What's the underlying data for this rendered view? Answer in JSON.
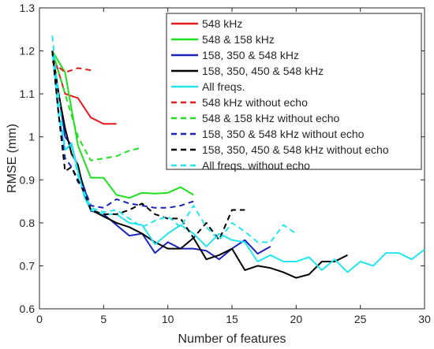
{
  "chart_data": {
    "type": "line",
    "title": "",
    "xlabel": "Number of features",
    "ylabel": "RMSE (mm)",
    "xlim": [
      0,
      30
    ],
    "ylim": [
      0.6,
      1.3
    ],
    "xticks": [
      0,
      5,
      10,
      15,
      20,
      25,
      30
    ],
    "yticks": [
      0.6,
      0.7,
      0.8,
      0.9,
      1.0,
      1.1,
      1.2,
      1.3
    ],
    "xtick_labels": [
      "0",
      "5",
      "10",
      "15",
      "20",
      "25",
      "30"
    ],
    "ytick_labels": [
      "0.6",
      "0.7",
      "0.8",
      "0.9",
      "1",
      "1.1",
      "1.2",
      "1.3"
    ],
    "grid": false,
    "legend_position": "top-right",
    "series": [
      {
        "name": "548 kHz",
        "color": "#e8191a",
        "style": "solid",
        "x": [
          1,
          2,
          3,
          4,
          5,
          6
        ],
        "y": [
          1.2,
          1.1,
          1.09,
          1.045,
          1.03,
          1.03
        ]
      },
      {
        "name": "548 & 158 kHz",
        "color": "#1fe020",
        "style": "solid",
        "x": [
          1,
          2,
          3,
          4,
          5,
          6,
          7,
          8,
          9,
          10,
          11,
          12
        ],
        "y": [
          1.2,
          1.15,
          0.98,
          0.905,
          0.905,
          0.865,
          0.858,
          0.87,
          0.868,
          0.87,
          0.883,
          0.865
        ]
      },
      {
        "name": "158, 350 & 548 kHz",
        "color": "#1b23bb",
        "style": "solid",
        "x": [
          1,
          1.5,
          2,
          2.5,
          3,
          3.5,
          4,
          5,
          6,
          7,
          8,
          9,
          10,
          11,
          12,
          13,
          14,
          15,
          16,
          17,
          18
        ],
        "y": [
          1.2,
          1.1,
          1.0,
          0.98,
          0.925,
          0.88,
          0.828,
          0.82,
          0.795,
          0.77,
          0.775,
          0.73,
          0.755,
          0.74,
          0.74,
          0.735,
          0.715,
          0.74,
          0.76,
          0.728,
          0.745
        ]
      },
      {
        "name": "158, 350, 450 & 548 kHz",
        "color": "#000000",
        "style": "solid",
        "x": [
          1,
          1.5,
          2,
          2.5,
          3,
          3.5,
          4,
          5,
          6,
          7,
          8,
          9,
          10,
          11,
          12,
          13,
          14,
          15,
          16,
          17,
          18,
          19,
          20,
          21,
          22,
          23,
          24
        ],
        "y": [
          1.2,
          1.1,
          1.02,
          0.96,
          0.935,
          0.87,
          0.83,
          0.815,
          0.8,
          0.79,
          0.775,
          0.755,
          0.74,
          0.74,
          0.765,
          0.715,
          0.725,
          0.74,
          0.69,
          0.7,
          0.695,
          0.685,
          0.672,
          0.68,
          0.71,
          0.71,
          0.725
        ]
      },
      {
        "name": "All freqs.",
        "color": "#22e5f0",
        "style": "solid",
        "x": [
          1,
          1.5,
          2,
          2.5,
          3,
          3.5,
          4,
          5,
          6,
          7,
          8,
          9,
          10,
          11,
          12,
          13,
          14,
          15,
          16,
          17,
          18,
          19,
          20,
          21,
          22,
          23,
          24,
          25,
          26,
          27,
          28,
          29,
          30
        ],
        "y": [
          1.2,
          1.05,
          0.97,
          0.985,
          0.92,
          0.86,
          0.83,
          0.82,
          0.82,
          0.8,
          0.795,
          0.75,
          0.775,
          0.795,
          0.775,
          0.745,
          0.775,
          0.76,
          0.755,
          0.71,
          0.725,
          0.71,
          0.71,
          0.72,
          0.69,
          0.715,
          0.685,
          0.71,
          0.7,
          0.73,
          0.73,
          0.715,
          0.738
        ]
      },
      {
        "name": "548 kHz without echo",
        "color": "#e8191a",
        "style": "dashed",
        "x": [
          1,
          2,
          3,
          4
        ],
        "y": [
          1.175,
          1.15,
          1.16,
          1.155
        ]
      },
      {
        "name": "548 & 158 kHz without echo",
        "color": "#1fe020",
        "style": "dashed",
        "x": [
          1,
          2,
          3,
          4,
          5,
          6,
          7,
          8
        ],
        "y": [
          1.2,
          1.1,
          1.0,
          0.945,
          0.95,
          0.955,
          0.968,
          0.975
        ]
      },
      {
        "name": "158, 350 & 548 kHz without echo",
        "color": "#1b23bb",
        "style": "dashed",
        "x": [
          1,
          1.5,
          2,
          2.5,
          3,
          3.5,
          4,
          5,
          6,
          7,
          8,
          9,
          10,
          11,
          12
        ],
        "y": [
          1.2,
          1.05,
          0.95,
          0.93,
          0.895,
          0.88,
          0.84,
          0.835,
          0.855,
          0.845,
          0.84,
          0.835,
          0.835,
          0.84,
          0.85
        ]
      },
      {
        "name": "158, 350, 450 & 548 kHz without echo",
        "color": "#000000",
        "style": "dashed",
        "x": [
          1,
          1.5,
          2,
          2.5,
          3,
          3.5,
          4,
          5,
          6,
          7,
          8,
          9,
          10,
          11,
          12,
          13,
          14,
          15,
          16
        ],
        "y": [
          1.2,
          1.05,
          0.92,
          0.93,
          0.9,
          0.87,
          0.83,
          0.82,
          0.82,
          0.83,
          0.845,
          0.82,
          0.81,
          0.81,
          0.765,
          0.8,
          0.76,
          0.83,
          0.83
        ]
      },
      {
        "name": "All freqs. without echo",
        "color": "#22e5f0",
        "style": "dashed",
        "x": [
          1,
          1.5,
          2,
          2.5,
          3,
          3.5,
          4,
          5,
          6,
          7,
          8,
          9,
          10,
          11,
          12,
          13,
          14,
          15,
          16,
          17,
          18,
          19,
          20
        ],
        "y": [
          1.235,
          1.09,
          0.97,
          0.98,
          0.91,
          0.87,
          0.835,
          0.825,
          0.83,
          0.81,
          0.79,
          0.805,
          0.815,
          0.79,
          0.84,
          0.79,
          0.76,
          0.8,
          0.78,
          0.755,
          0.755,
          0.795,
          0.775
        ]
      }
    ]
  }
}
